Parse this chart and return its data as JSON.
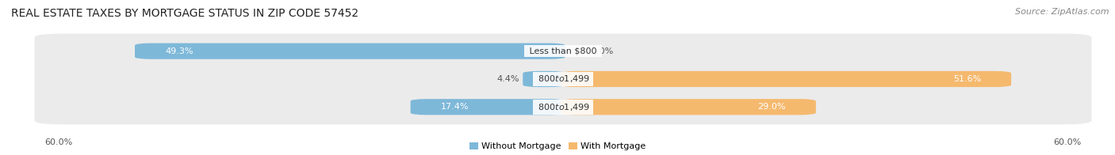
{
  "title": "REAL ESTATE TAXES BY MORTGAGE STATUS IN ZIP CODE 57452",
  "source": "Source: ZipAtlas.com",
  "rows": [
    {
      "label": "Less than $800",
      "without": 49.3,
      "with": 0.0
    },
    {
      "label": "$800 to $1,499",
      "without": 4.4,
      "with": 51.6
    },
    {
      "label": "$800 to $1,499",
      "without": 17.4,
      "with": 29.0
    }
  ],
  "max_val": 60.0,
  "color_without": "#7eb8d9",
  "color_with": "#f5b96e",
  "color_row_bg": "#ebebeb",
  "legend_without": "Without Mortgage",
  "legend_with": "With Mortgage",
  "axis_label_left": "60.0%",
  "axis_label_right": "60.0%",
  "title_fontsize": 10,
  "source_fontsize": 8,
  "bar_label_fontsize": 8,
  "tick_fontsize": 8
}
